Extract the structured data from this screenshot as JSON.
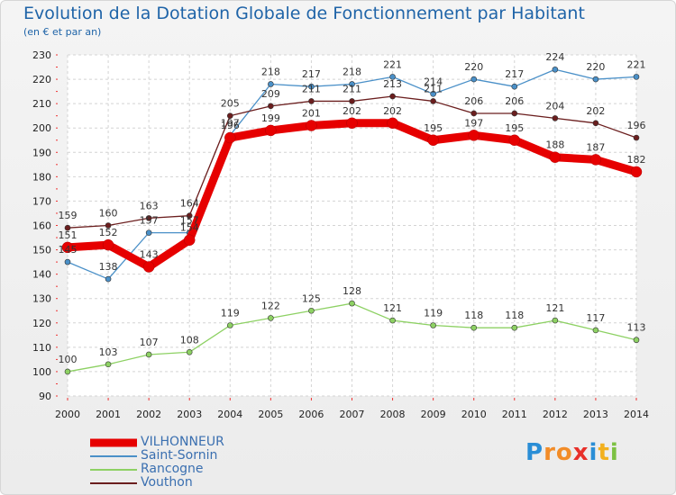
{
  "title": "Evolution de la Dotation Globale de Fonctionnement par Habitant",
  "subtitle": "(en € et par an)",
  "brand": {
    "letters": [
      {
        "ch": "P",
        "color": "#2a8ed6"
      },
      {
        "ch": "r",
        "color": "#f28c28"
      },
      {
        "ch": "o",
        "color": "#f28c28"
      },
      {
        "ch": "x",
        "color": "#e8302a"
      },
      {
        "ch": "i",
        "color": "#2a8ed6"
      },
      {
        "ch": "t",
        "color": "#f2b01e"
      },
      {
        "ch": "i",
        "color": "#7cc142"
      }
    ]
  },
  "chart_data": {
    "type": "line",
    "title": "Evolution de la Dotation Globale de Fonctionnement par Habitant",
    "ylabel": "(en € et par an)",
    "xlabel": "",
    "ylim": [
      90,
      230
    ],
    "yticks": [
      90,
      100,
      110,
      120,
      130,
      140,
      150,
      160,
      170,
      180,
      190,
      200,
      210,
      220,
      230
    ],
    "categories": [
      "2000",
      "2001",
      "2002",
      "2003",
      "2004",
      "2005",
      "2006",
      "2007",
      "2008",
      "2009",
      "2010",
      "2011",
      "2012",
      "2013",
      "2014"
    ],
    "grid": true,
    "series": [
      {
        "name": "VILHONNEUR",
        "color": "#e60000",
        "bold": true,
        "values": [
          151,
          152,
          143,
          154,
          196,
          199,
          201,
          202,
          202,
          195,
          197,
          195,
          188,
          187,
          182
        ]
      },
      {
        "name": "Saint-Sornin",
        "color": "#4a90c8",
        "bold": false,
        "values": [
          145,
          138,
          157,
          157,
          197,
          218,
          217,
          218,
          221,
          214,
          220,
          217,
          224,
          220,
          221
        ]
      },
      {
        "name": "Rancogne",
        "color": "#8dd163",
        "bold": false,
        "values": [
          100,
          103,
          107,
          108,
          119,
          122,
          125,
          128,
          121,
          119,
          118,
          118,
          121,
          117,
          113
        ]
      },
      {
        "name": "Vouthon",
        "color": "#6b1e1e",
        "bold": false,
        "values": [
          159,
          160,
          163,
          164,
          205,
          209,
          211,
          211,
          213,
          211,
          206,
          206,
          204,
          202,
          196
        ]
      }
    ]
  }
}
